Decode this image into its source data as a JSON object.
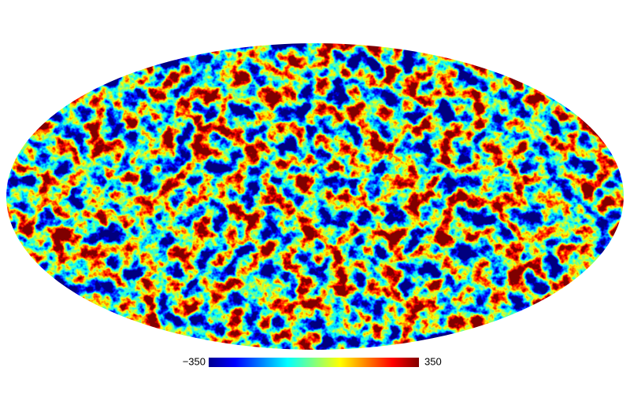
{
  "colorbar": {
    "min": {
      "value": -350,
      "label": "−350"
    },
    "max": 350
  }
}
